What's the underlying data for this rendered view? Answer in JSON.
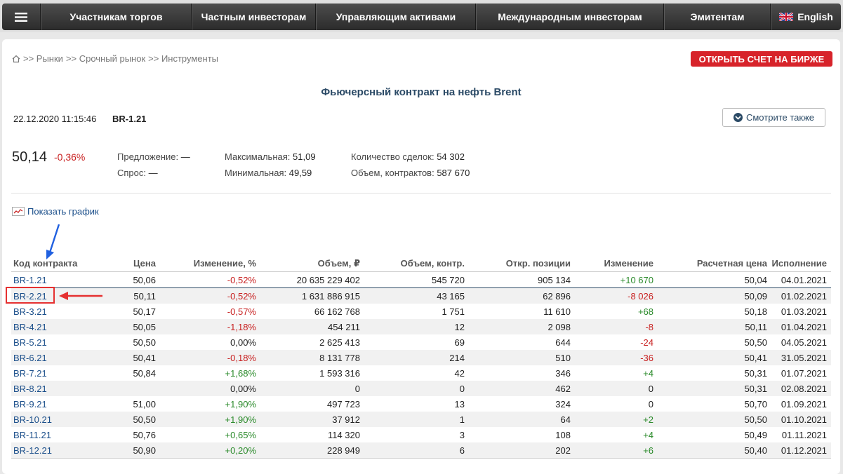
{
  "nav": {
    "items": [
      "Участникам торгов",
      "Частным инвесторам",
      "Управляющим активами",
      "Международным инвесторам",
      "Эмитентам"
    ],
    "english_label": "English"
  },
  "breadcrumb": {
    "items": [
      ">> Рынки",
      ">> Срочный рынок",
      ">> Инструменты"
    ]
  },
  "open_account_label": "ОТКРЫТЬ СЧЕТ НА БИРЖЕ",
  "page_title": "Фьючерсный контракт на нефть Brent",
  "datetime": "22.12.2020 11:15:46",
  "instrument_code": "BR-1.21",
  "see_also_label": "Смотрите также",
  "quote": {
    "price": "50,14",
    "change": "-0,36%",
    "offer_label": "Предложение:",
    "offer_value": "—",
    "bid_label": "Спрос:",
    "bid_value": "—",
    "max_label": "Максимальная:",
    "max_value": "51,09",
    "min_label": "Минимальная:",
    "min_value": "49,59",
    "deals_label": "Количество сделок:",
    "deals_value": "54 302",
    "volume_label": "Объем, контрактов:",
    "volume_value": "587 670"
  },
  "show_chart_label": "Показать график",
  "table": {
    "headers": [
      "Код контракта",
      "Цена",
      "Изменение, %",
      "Объем, ₽",
      "Объем, контр.",
      "Откр. позиции",
      "Изменение",
      "Расчетная цена",
      "Исполнение"
    ],
    "rows": [
      [
        "BR-1.21",
        "50,06",
        "-0,52%",
        "20 635 229 402",
        "545 720",
        "905 134",
        "+10 670",
        "50,04",
        "04.01.2021"
      ],
      [
        "BR-2.21",
        "50,11",
        "-0,52%",
        "1 631 886 915",
        "43 165",
        "62 896",
        "-8 026",
        "50,09",
        "01.02.2021"
      ],
      [
        "BR-3.21",
        "50,17",
        "-0,57%",
        "66 162 768",
        "1 751",
        "11 610",
        "+68",
        "50,18",
        "01.03.2021"
      ],
      [
        "BR-4.21",
        "50,05",
        "-1,18%",
        "454 211",
        "12",
        "2 098",
        "-8",
        "50,11",
        "01.04.2021"
      ],
      [
        "BR-5.21",
        "50,50",
        "0,00%",
        "2 625 413",
        "69",
        "644",
        "-24",
        "50,50",
        "04.05.2021"
      ],
      [
        "BR-6.21",
        "50,41",
        "-0,18%",
        "8 131 778",
        "214",
        "510",
        "-36",
        "50,41",
        "31.05.2021"
      ],
      [
        "BR-7.21",
        "50,84",
        "+1,68%",
        "1 593 316",
        "42",
        "346",
        "+4",
        "50,31",
        "01.07.2021"
      ],
      [
        "BR-8.21",
        "",
        "0,00%",
        "0",
        "0",
        "462",
        "0",
        "50,31",
        "02.08.2021"
      ],
      [
        "BR-9.21",
        "51,00",
        "+1,90%",
        "497 723",
        "13",
        "324",
        "0",
        "50,70",
        "01.09.2021"
      ],
      [
        "BR-10.21",
        "50,50",
        "+1,90%",
        "37 912",
        "1",
        "64",
        "+2",
        "50,50",
        "01.10.2021"
      ],
      [
        "BR-11.21",
        "50,76",
        "+0,65%",
        "114 320",
        "3",
        "108",
        "+4",
        "50,49",
        "01.11.2021"
      ],
      [
        "BR-12.21",
        "50,90",
        "+0,20%",
        "228 949",
        "6",
        "202",
        "+6",
        "50,40",
        "01.12.2021"
      ]
    ]
  },
  "colors": {
    "negative": "#c82020",
    "positive": "#2a8a2a",
    "link": "#1a4e8a",
    "accent_red": "#d7232a",
    "title": "#2b4a66",
    "annotation_blue": "#2060e0",
    "annotation_red": "#e53030"
  },
  "icons": [
    "menu-icon",
    "home-icon",
    "uk-flag-icon",
    "chevron-down-circle-icon",
    "chart-icon"
  ]
}
